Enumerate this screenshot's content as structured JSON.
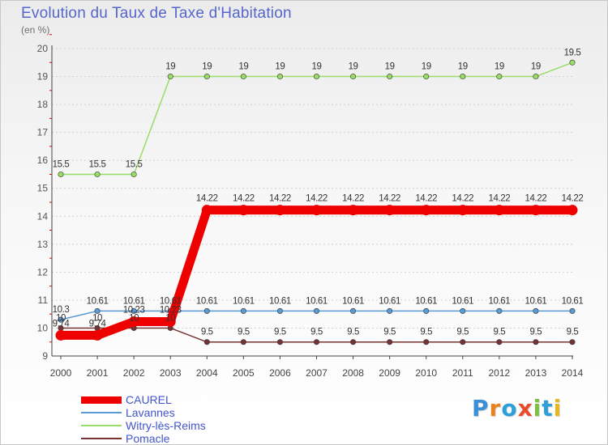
{
  "chart_data": {
    "type": "line",
    "title": "Evolution du Taux de Taxe d'Habitation",
    "subtitle": "(en %)",
    "xlabel": "",
    "ylabel": "(en %)",
    "ylim": [
      9,
      20
    ],
    "yticks": [
      "9",
      "10",
      "11",
      "12",
      "13",
      "14",
      "15",
      "16",
      "17",
      "18",
      "19",
      "20"
    ],
    "categories": [
      "2000",
      "2001",
      "2002",
      "2003",
      "2004",
      "2005",
      "2006",
      "2007",
      "2008",
      "2009",
      "2010",
      "2011",
      "2012",
      "2013",
      "2014"
    ],
    "series": [
      {
        "name": "CAUREL",
        "color": "#ee0000",
        "width": 11,
        "label_color": "#333333",
        "values": [
          9.74,
          9.74,
          10.23,
          10.23,
          14.22,
          14.22,
          14.22,
          14.22,
          14.22,
          14.22,
          14.22,
          14.22,
          14.22,
          14.22,
          14.22
        ],
        "labels": [
          "9.74",
          "9.74",
          "10.23",
          "10.23",
          "14.22",
          "14.22",
          "14.22",
          "14.22",
          "14.22",
          "14.22",
          "14.22",
          "14.22",
          "14.22",
          "14.22",
          "14.22"
        ]
      },
      {
        "name": "Lavannes",
        "color": "#5b9bd5",
        "width": 1.5,
        "label_color": "#333333",
        "values": [
          10.3,
          10.61,
          10.61,
          10.61,
          10.61,
          10.61,
          10.61,
          10.61,
          10.61,
          10.61,
          10.61,
          10.61,
          10.61,
          10.61,
          10.61
        ],
        "labels": [
          "10.3",
          "10.61",
          "10.61",
          "10.61",
          "10.61",
          "10.61",
          "10.61",
          "10.61",
          "10.61",
          "10.61",
          "10.61",
          "10.61",
          "10.61",
          "10.61",
          "10.61"
        ]
      },
      {
        "name": "Witry-lès-Reims",
        "color": "#99dd66",
        "width": 1.5,
        "label_color": "#333333",
        "values": [
          15.5,
          15.5,
          15.5,
          19,
          19,
          19,
          19,
          19,
          19,
          19,
          19,
          19,
          19,
          19,
          19.5
        ],
        "labels": [
          "15.5",
          "15.5",
          "15.5",
          "19",
          "19",
          "19",
          "19",
          "19",
          "19",
          "19",
          "19",
          "19",
          "19",
          "19",
          "19.5"
        ]
      },
      {
        "name": "Pomacle",
        "color": "#773333",
        "width": 1.5,
        "label_color": "#333333",
        "values": [
          10,
          10,
          10,
          10,
          9.5,
          9.5,
          9.5,
          9.5,
          9.5,
          9.5,
          9.5,
          9.5,
          9.5,
          9.5,
          9.5
        ],
        "labels": [
          "10",
          "10",
          "10",
          "10",
          "9.5",
          "9.5",
          "9.5",
          "9.5",
          "9.5",
          "9.5",
          "9.5",
          "9.5",
          "9.5",
          "9.5",
          "9.5"
        ]
      }
    ]
  },
  "legend": [
    "CAUREL",
    "Lavannes",
    "Witry-lès-Reims",
    "Pomacle"
  ],
  "logo": {
    "letters": [
      "P",
      "r",
      "o",
      "x",
      "i",
      "t",
      "i"
    ],
    "colors": [
      "#3a8fd6",
      "#e8821c",
      "#2f9fd8",
      "#e84a2c",
      "#7cc242",
      "#2f9fd8",
      "#e8b61c"
    ]
  }
}
